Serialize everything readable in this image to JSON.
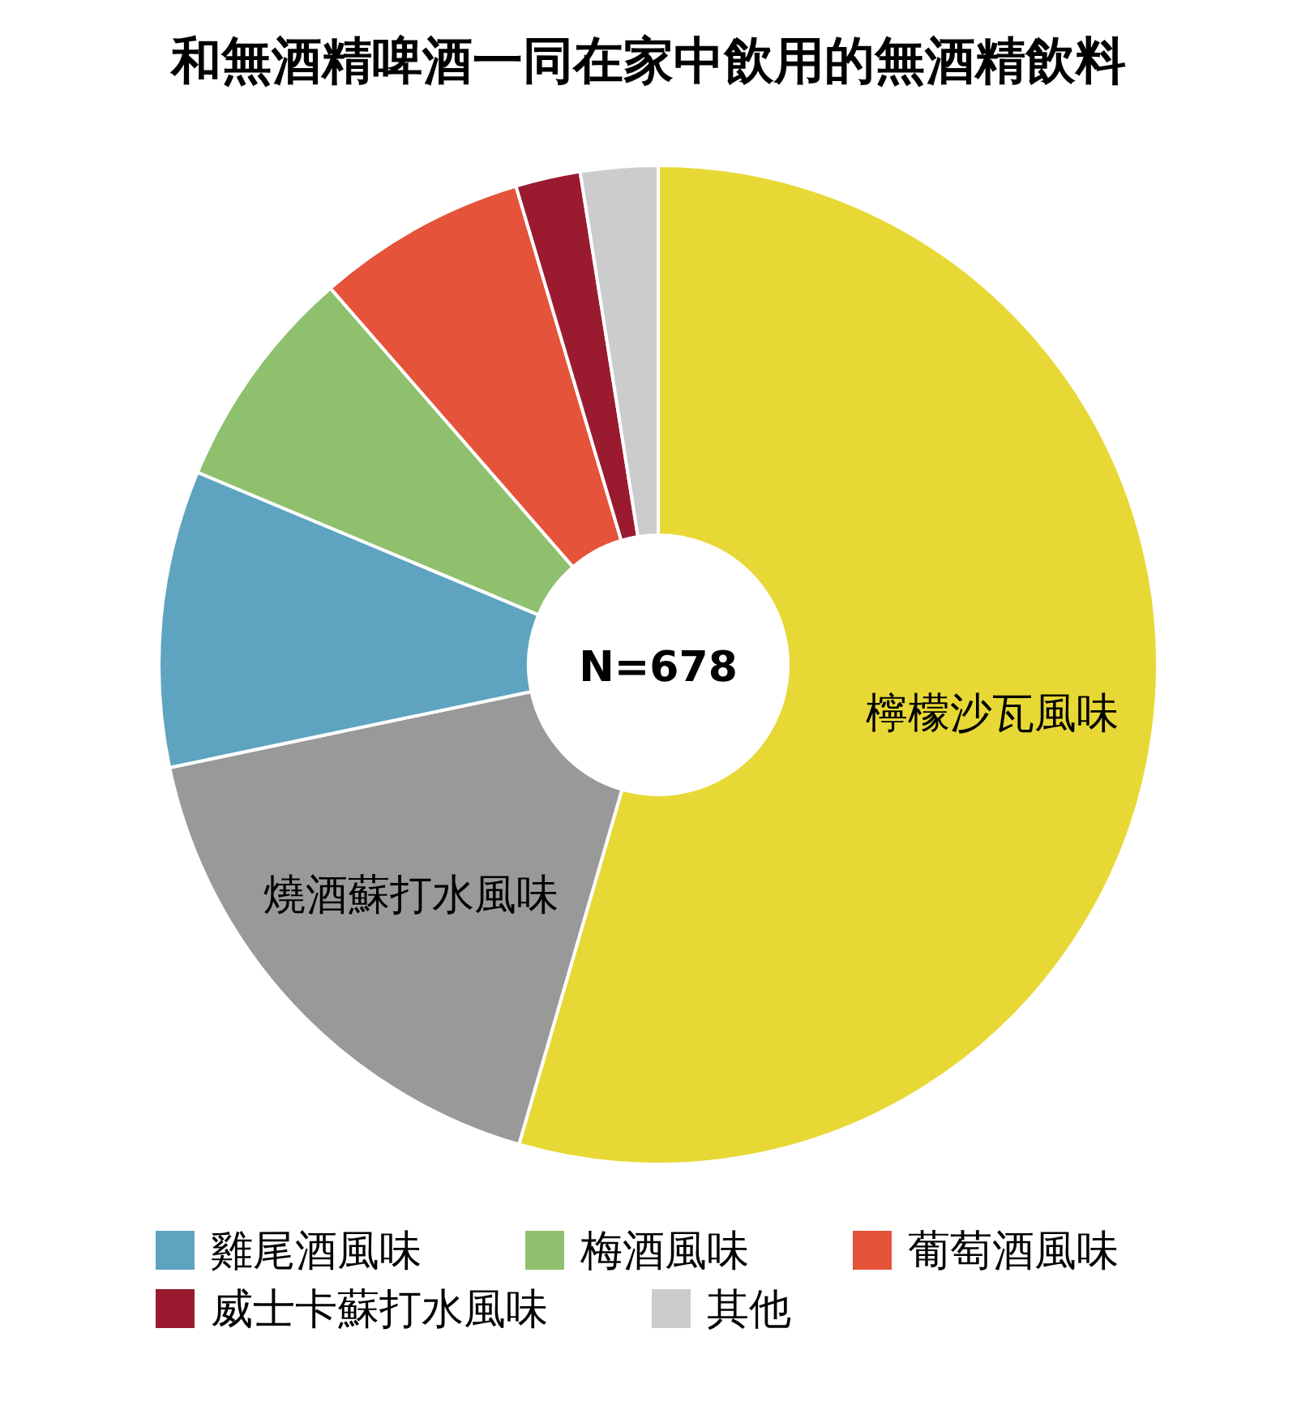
{
  "chart_data": {
    "type": "donut",
    "title": "和無酒精啤酒一同在家中飲用的無酒精飲料",
    "categories": [
      "檸檬沙瓦風味",
      "燒酒蘇打水風味",
      "雞尾酒風味",
      "梅酒風味",
      "葡萄酒風味",
      "威士卡蘇打水風味",
      "其他"
    ],
    "values": [
      54.5,
      17.2,
      9.6,
      7.3,
      6.8,
      2.1,
      2.5
    ],
    "colors": [
      "#e8d835",
      "#999999",
      "#5ea4c0",
      "#8fc06e",
      "#e5533a",
      "#9a1b30",
      "#cccccc"
    ],
    "annotations": [
      "N=678"
    ],
    "legend": "bottom"
  }
}
